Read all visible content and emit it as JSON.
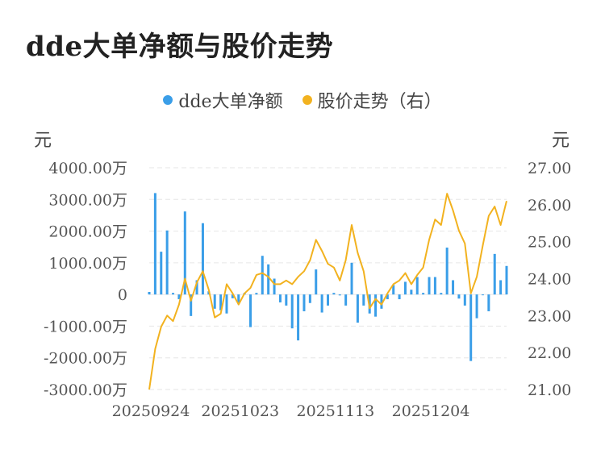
{
  "title": "dde大单净额与股价走势",
  "legend": {
    "bar_label": "dde大单净额",
    "line_label": "股价走势（右）"
  },
  "units": {
    "left": "元",
    "right": "元"
  },
  "colors": {
    "bar": "#3a9ee8",
    "line": "#f2b21f",
    "grid": "#e6e6e6"
  },
  "chart_data": {
    "type": "bar",
    "title": "dde大单净额与股价走势",
    "x_tick_labels": [
      "20250924",
      "20251023",
      "20251113",
      "20251204"
    ],
    "y_left": {
      "label": "元",
      "ylim": [
        -3000,
        4000
      ],
      "tick_values": [
        4000,
        3000,
        2000,
        1000,
        0,
        -1000,
        -2000,
        -3000
      ],
      "tick_labels": [
        "4000.00万",
        "3000.00万",
        "2000.00万",
        "1000.00万",
        "0",
        "-1000.00万",
        "-2000.00万",
        "-3000.00万"
      ]
    },
    "y_right": {
      "label": "元",
      "ylim": [
        21,
        27
      ],
      "tick_values": [
        27,
        26,
        25,
        24,
        23,
        22,
        21
      ],
      "tick_labels": [
        "27.00",
        "26.00",
        "25.00",
        "24.00",
        "23.00",
        "22.00",
        "21.00"
      ]
    },
    "grid": true,
    "legend_position": "top-center",
    "series": [
      {
        "name": "dde大单净额",
        "type": "bar",
        "axis": "left",
        "values": [
          80,
          3200,
          1350,
          2020,
          50,
          -150,
          2620,
          -680,
          450,
          2250,
          100,
          -450,
          -500,
          -600,
          -120,
          -280,
          50,
          -1030,
          50,
          1220,
          950,
          500,
          -250,
          -350,
          -1070,
          -1450,
          -530,
          -270,
          790,
          -570,
          -350,
          50,
          -30,
          -350,
          1000,
          -890,
          -350,
          -600,
          -700,
          -450,
          -150,
          300,
          -150,
          400,
          150,
          550,
          50,
          550,
          550,
          50,
          1480,
          450,
          -130,
          -350,
          -2100,
          -750,
          -20,
          -530,
          1280,
          450,
          900
        ]
      },
      {
        "name": "股价走势（右）",
        "type": "line",
        "axis": "right",
        "values": [
          21.0,
          22.1,
          22.7,
          23.0,
          22.85,
          23.3,
          24.0,
          23.4,
          23.9,
          24.2,
          23.7,
          22.95,
          23.05,
          23.85,
          23.6,
          23.3,
          23.6,
          23.75,
          24.1,
          24.15,
          24.05,
          23.85,
          23.85,
          23.95,
          23.85,
          24.05,
          24.2,
          24.5,
          25.05,
          24.75,
          24.4,
          24.3,
          23.95,
          24.5,
          25.45,
          24.7,
          24.2,
          23.2,
          23.45,
          23.3,
          23.6,
          23.85,
          23.95,
          24.15,
          23.85,
          24.1,
          24.3,
          25.05,
          25.6,
          25.45,
          26.3,
          25.85,
          25.3,
          24.95,
          23.6,
          24.05,
          24.9,
          25.7,
          25.95,
          25.45,
          26.1
        ]
      }
    ]
  }
}
